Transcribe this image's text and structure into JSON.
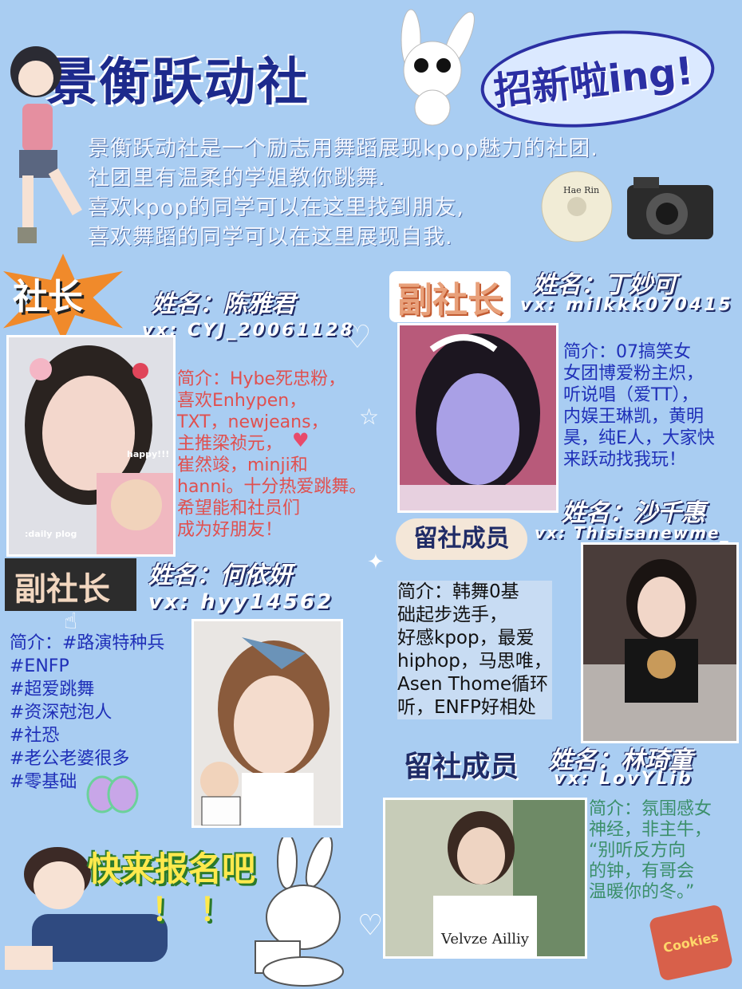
{
  "header": {
    "title": "景衡跃动社",
    "recruit": "招新啦ing!"
  },
  "intro": [
    "景衡跃动社是一个励志用舞蹈展现kpop魅力的社团.",
    "社团里有温柔的学姐教你跳舞.",
    "喜欢kpop的同学可以在这里找到朋友,",
    "喜欢舞蹈的同学可以在这里展现自我."
  ],
  "badges": {
    "president": "社长",
    "vice1": "副社长",
    "vice2": "副社长",
    "member1": "留社成员",
    "member2": "留社成员"
  },
  "members": {
    "president": {
      "name": "姓名：陈雅君",
      "vx": "vx: CYJ_20061128",
      "bio": [
        "简介：Hybe死忠粉，",
        "喜欢Enhypen，",
        "TXT，newjeans，",
        "主推梁祯元，",
        "崔然竣，minji和",
        "hanni。十分热爱跳舞。",
        "希望能和社员们",
        "成为好朋友！"
      ],
      "photo_caption1": "happy!!!",
      "photo_caption2": ":daily plog"
    },
    "vice1": {
      "name": "姓名：丁妙可",
      "vx": "vx: milkkk070415",
      "bio": [
        "简介：07搞笑女",
        "女团博爱粉主炽，",
        "听说唱（爱TT），",
        "内娱王琳凯，黄明",
        "昊，纯E人，大家快",
        "来跃动找我玩！"
      ]
    },
    "vice2": {
      "name": "姓名：何依妍",
      "vx": "vx: hyy14562",
      "bio": [
        "简介：#路演特种兵",
        "#ENFP",
        "#超爱跳舞",
        "#资深尅泡人",
        "#社恐",
        "#老公老婆很多",
        "#零基础"
      ]
    },
    "member1": {
      "name": "姓名：沙千惠",
      "vx": "vx: Thisisanewme_",
      "bio": [
        "简介：韩舞0基",
        "础起步选手，",
        "好感kpop，最爱",
        "hiphop，马思唯，",
        "Asen Thome循环",
        "听，ENFP好相处"
      ]
    },
    "member2": {
      "name": "姓名：林琦童",
      "vx": "vx: LovYLib",
      "bio": [
        "简介：氛围感女",
        "神经，非主牛，",
        "“别听反方向",
        "的钟，有哥会",
        "温暖你的冬。”"
      ]
    }
  },
  "footer": {
    "signup": "快来报名吧",
    "exclaim": "！！"
  },
  "decorations": {
    "cd_label": "Hae Rin",
    "shirt_text": "Velvze Ailliy",
    "cookies": "Cookies"
  },
  "colors": {
    "background": "#a9cdf2",
    "title": "#1d2a8c",
    "bio_red": "#e0504f",
    "bio_blue": "#1f2fb8",
    "bio_black": "#111111",
    "bio_green": "#3b8f6a"
  }
}
